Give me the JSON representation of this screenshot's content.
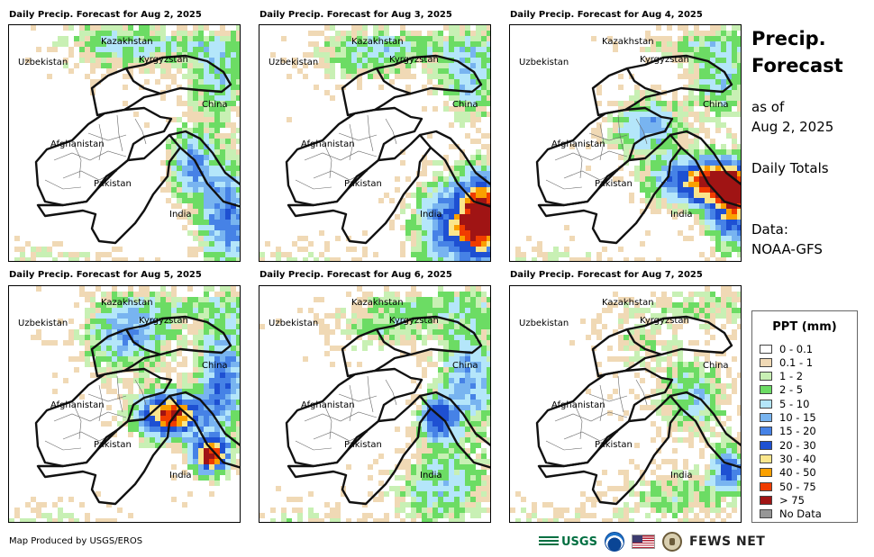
{
  "panels": [
    {
      "title": "Daily Precip. Forecast for Aug 2, 2025",
      "date": "Aug 2, 2025",
      "day": 0
    },
    {
      "title": "Daily Precip. Forecast for Aug 3, 2025",
      "date": "Aug 3, 2025",
      "day": 1
    },
    {
      "title": "Daily Precip. Forecast for Aug 4, 2025",
      "date": "Aug 4, 2025",
      "day": 2
    },
    {
      "title": "Daily Precip. Forecast for Aug 5, 2025",
      "date": "Aug 5, 2025",
      "day": 3
    },
    {
      "title": "Daily Precip. Forecast for Aug 6, 2025",
      "date": "Aug 6, 2025",
      "day": 4
    },
    {
      "title": "Daily Precip. Forecast for Aug 7, 2025",
      "date": "Aug 7, 2025",
      "day": 5
    }
  ],
  "map_labels": {
    "kazakhstan": "Kazakhstan",
    "uzbekistan": "Uzbekistan",
    "kyrgyzstan": "Kyrgyzstan",
    "china": "China",
    "afghanistan": "Afghanistan",
    "pakistan": "Pakistan",
    "india": "India"
  },
  "side": {
    "title_line1": "Precip.",
    "title_line2": "Forecast",
    "asof_line1": "as of",
    "asof_line2": "Aug 2, 2025",
    "totals": "Daily Totals",
    "data_line1": "Data:",
    "data_line2": "NOAA-GFS"
  },
  "legend": {
    "title": "PPT (mm)",
    "items": [
      {
        "label": "0 - 0.1",
        "color": "#ffffff"
      },
      {
        "label": "0.1 - 1",
        "color": "#f0d9b5"
      },
      {
        "label": "1 - 2",
        "color": "#c8f0b4"
      },
      {
        "label": "2 - 5",
        "color": "#6cdc64"
      },
      {
        "label": "5 - 10",
        "color": "#b4e6fa"
      },
      {
        "label": "10 - 15",
        "color": "#78b4f0"
      },
      {
        "label": "15 - 20",
        "color": "#4682e6"
      },
      {
        "label": "20 - 30",
        "color": "#1e50d2"
      },
      {
        "label": "30 - 40",
        "color": "#fae68c"
      },
      {
        "label": "40 - 50",
        "color": "#faa000"
      },
      {
        "label": "50 - 75",
        "color": "#f03c00"
      },
      {
        "label": "> 75",
        "color": "#a01414"
      },
      {
        "label": "No Data",
        "color": "#969696"
      }
    ]
  },
  "footer": {
    "credit": "Map Produced by USGS/EROS"
  },
  "logos": {
    "usgs": "USGS",
    "noaa_icon": "noaa-logo",
    "flag_icon": "us-flag",
    "seal_icon": "state-dept-seal",
    "fews": "FEWS NET"
  }
}
